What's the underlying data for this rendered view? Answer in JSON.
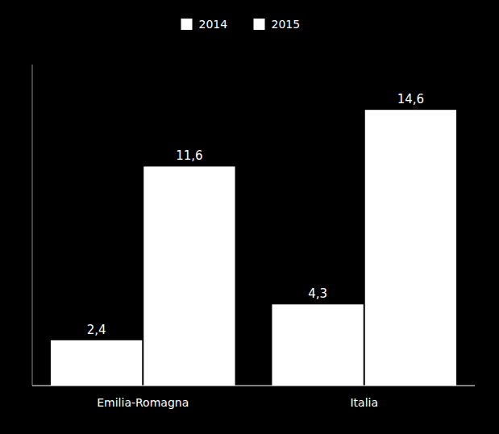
{
  "chart_data": {
    "type": "bar",
    "categories": [
      "Emilia-Romagna",
      "Italia"
    ],
    "series": [
      {
        "name": "2014",
        "color": "#ffffff",
        "values": [
          2.4,
          4.3
        ],
        "value_labels": [
          "2,4",
          "4,3"
        ]
      },
      {
        "name": "2015",
        "color": "#ffffff",
        "values": [
          11.6,
          14.6
        ],
        "value_labels": [
          "11,6",
          "14,6"
        ]
      }
    ],
    "ylim": [
      0,
      17
    ],
    "grid": false,
    "legend": "top",
    "data_labels": true,
    "tick_labels": "x"
  }
}
